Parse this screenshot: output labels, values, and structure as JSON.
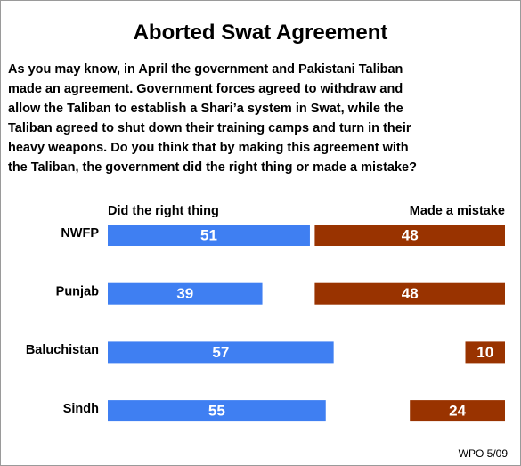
{
  "chart_data": {
    "type": "bar",
    "orientation": "horizontal",
    "title": "Aborted Swat Agreement",
    "question": [
      "As you may know, in April the government and Pakistani Taliban",
      "made an agreement. Government forces agreed to withdraw and",
      "allow the Taliban to establish a Shari’a system in Swat, while the",
      "Taliban agreed to shut down their training camps and turn in their",
      "heavy weapons.  Do you think that by making this agreement with",
      "the Taliban, the government did the right thing or made a mistake?"
    ],
    "categories": [
      "NWFP",
      "Punjab",
      "Baluchistan",
      "Sindh"
    ],
    "series": [
      {
        "name": "Did the right thing",
        "color": "#3f7ff2",
        "values": [
          51,
          39,
          57,
          55
        ]
      },
      {
        "name": "Made a mistake",
        "color": "#993300",
        "values": [
          48,
          48,
          10,
          24
        ]
      }
    ],
    "source": "WPO 5/09"
  }
}
